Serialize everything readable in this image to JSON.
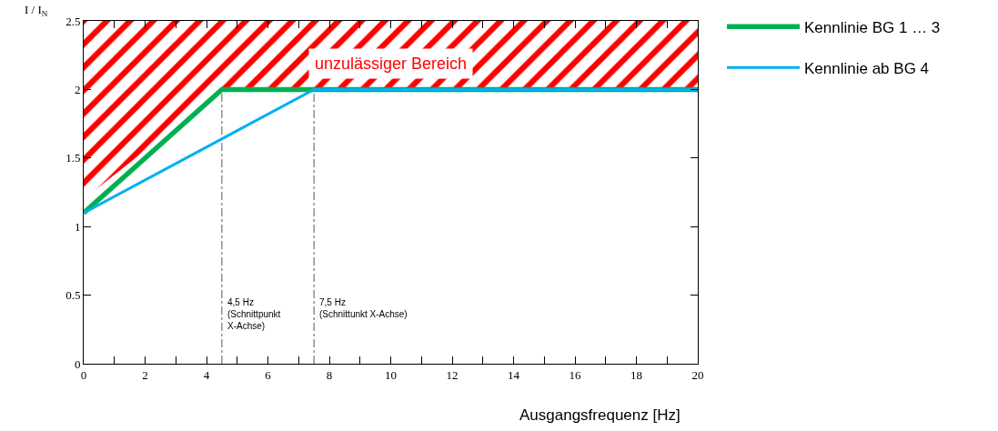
{
  "chart_data": {
    "type": "line",
    "xlabel": "Ausgangsfrequenz [Hz]",
    "ylabel": "I / I$_{N}$",
    "xlim": [
      0,
      20
    ],
    "xticks": [
      0,
      2,
      4,
      6,
      8,
      10,
      12,
      14,
      16,
      18,
      20
    ],
    "ylim": [
      0,
      2.5
    ],
    "yticks": [
      0,
      0.5,
      1,
      1.5,
      2,
      2.5
    ],
    "grid": false,
    "legend": "top right",
    "marker": "none",
    "line_style": "solid",
    "series": [
      {
        "type": "area",
        "color": "#ff0000",
        "x": [
          0,
          0,
          20,
          20,
          4.5,
          0
        ],
        "values": [
          1.2,
          2.5,
          2.5,
          2,
          2,
          1.2
        ]
      },
      {
        "name": "Kennlinie BG 1 … 3",
        "color": "#00b050",
        "x": [
          0,
          4.5,
          20
        ],
        "values": [
          1.1,
          2,
          2
        ]
      },
      {
        "name": "Kennlinie ab BG 4",
        "color": "#00b0f0",
        "x": [
          0,
          7.5,
          20
        ],
        "values": [
          1.1,
          2,
          2
        ]
      }
    ],
    "ref_lines": [
      {
        "axis": "x",
        "value": 4.5,
        "label": "4,5 Hz\n(Schnittpunkt\nX-Achse)",
        "color": "#555555",
        "line_style": "dashdot"
      },
      {
        "axis": "x",
        "value": 7.5,
        "label": "7,5 Hz\n(Schnittunkt X-Achse)",
        "color": "#555555",
        "line_style": "dashdot"
      }
    ],
    "annotations": [
      "unzulässiger Bereich"
    ]
  }
}
